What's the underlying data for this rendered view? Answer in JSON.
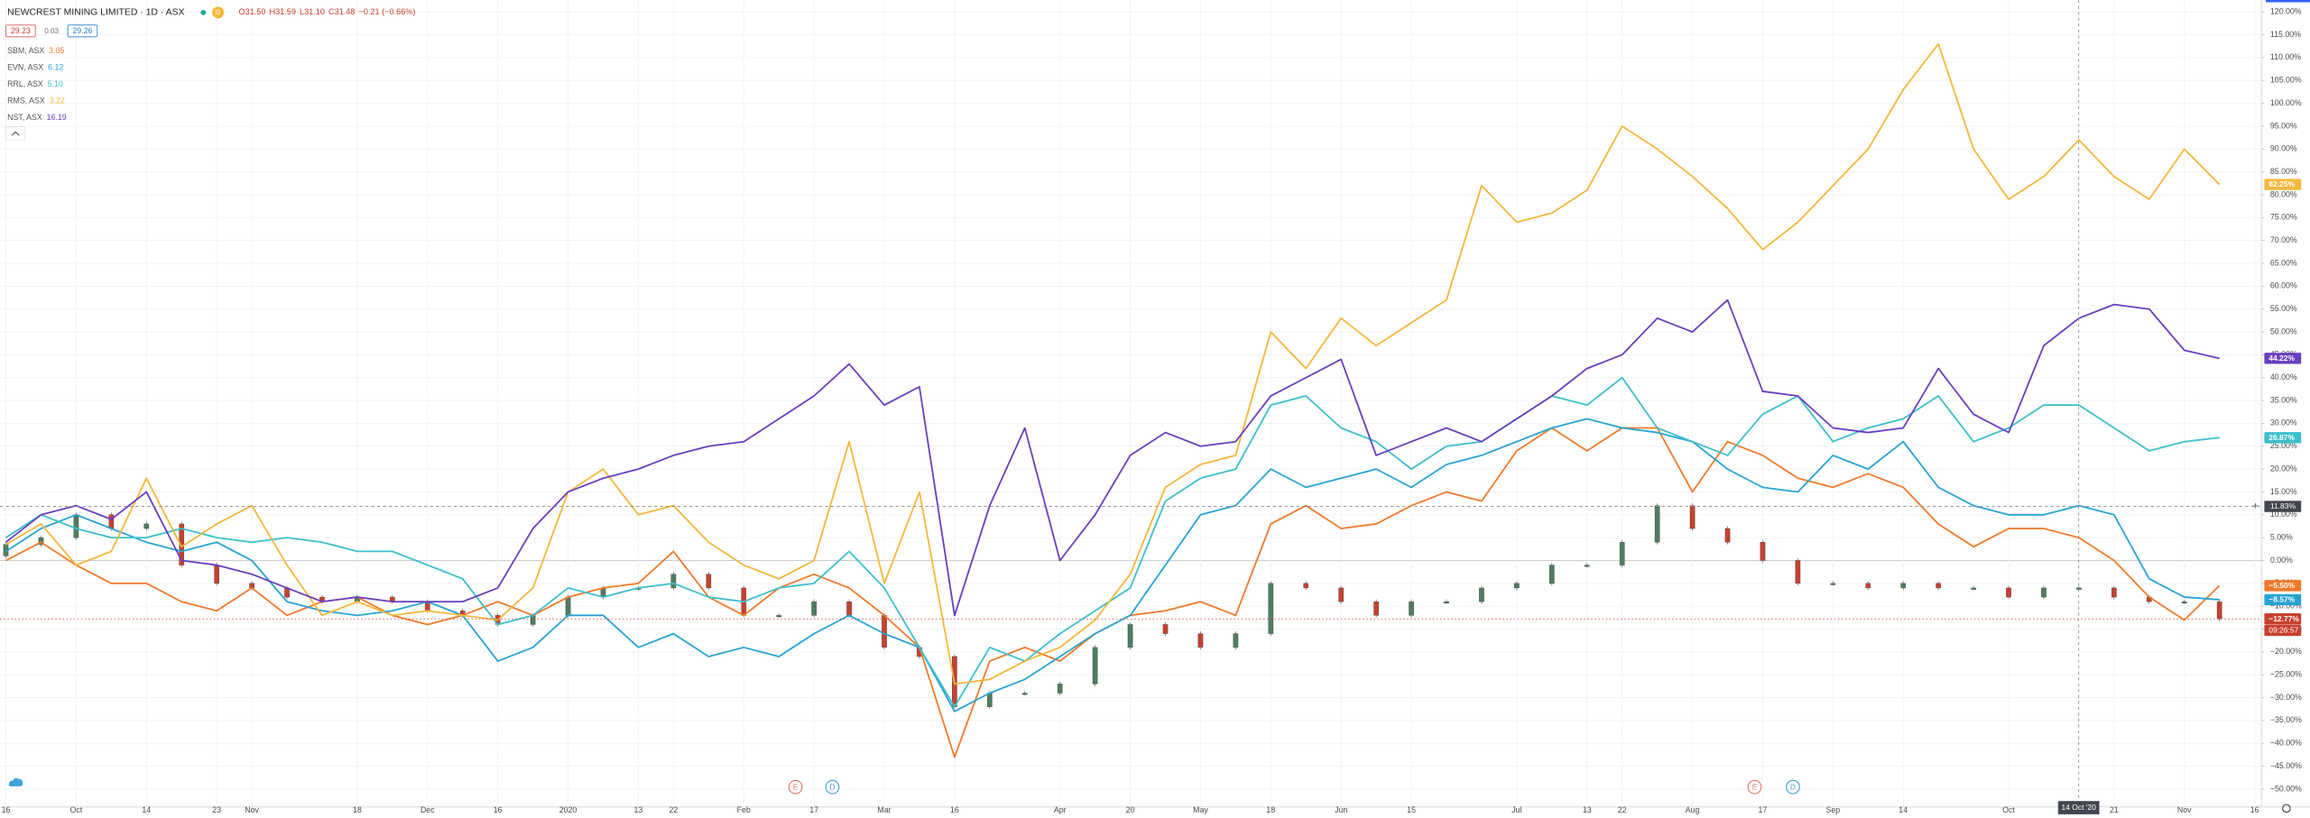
{
  "header": {
    "symbol": "NEWCREST MINING LIMITED · 1D · ASX",
    "interval_badge": "D",
    "ohlc": [
      "O31.50",
      "H31.59",
      "L31.10",
      "C31.48",
      "−0.21 (−0.66%)"
    ],
    "sell": "29.23",
    "spread": "0.03",
    "buy": "29.26"
  },
  "chart_data": {
    "type": "line",
    "categories": [
      "16",
      null,
      "Oct",
      null,
      "14",
      null,
      "23",
      "Nov",
      null,
      null,
      "18",
      null,
      "Dec",
      null,
      "16",
      null,
      "2020",
      null,
      "13",
      "22",
      null,
      "Feb",
      null,
      "17",
      null,
      "Mar",
      null,
      "16",
      null,
      null,
      "Apr",
      null,
      "20",
      null,
      "May",
      null,
      "18",
      null,
      "Jun",
      null,
      "15",
      null,
      null,
      "Jul",
      null,
      "13",
      "22",
      null,
      "Aug",
      null,
      "17",
      null,
      "Sep",
      null,
      "14",
      null,
      null,
      "Oct",
      null,
      null,
      "21",
      null,
      "Nov",
      null,
      "16"
    ],
    "series": [
      {
        "name": "SBM, ASX",
        "price": "3.05",
        "color": "#f07a2a",
        "last_label": "−5.50%",
        "values": [
          0,
          4,
          -1,
          -5,
          -5,
          -9,
          -11,
          -6,
          -12,
          -9,
          -8,
          -12,
          -14,
          -12,
          -9,
          -12,
          -8,
          -6,
          -5,
          2,
          -8,
          -12,
          -6,
          -3,
          -6,
          -12,
          -19,
          -43,
          -22,
          -19,
          -22,
          -16,
          -12,
          -11,
          -9,
          -12,
          8,
          12,
          7,
          8,
          12,
          15,
          13,
          24,
          29,
          24,
          29,
          29,
          15,
          26,
          23,
          18,
          16,
          19,
          16,
          8,
          3,
          7,
          7,
          5,
          0,
          -8,
          -13,
          -5.5,
          null
        ]
      },
      {
        "name": "EVN, ASX",
        "price": "6.12",
        "color": "#27a4d3",
        "last_label": "−8.57%",
        "values": [
          2,
          7,
          10,
          7,
          4,
          2,
          4,
          0,
          -9,
          -11,
          -12,
          -11,
          -9,
          -12,
          -22,
          -19,
          -12,
          -12,
          -19,
          -16,
          -21,
          -19,
          -21,
          -16,
          -12,
          -16,
          -19,
          -33,
          -29,
          -26,
          -21,
          -16,
          -12,
          -1,
          10,
          12,
          20,
          16,
          18,
          20,
          16,
          21,
          23,
          26,
          29,
          31,
          29,
          28,
          26,
          20,
          16,
          15,
          23,
          20,
          26,
          16,
          12,
          10,
          10,
          12,
          10,
          -4,
          -8,
          -8.57,
          null
        ]
      },
      {
        "name": "RRL, ASX",
        "price": "5.10",
        "color": "#3cbfcb",
        "last_label": "26.87%",
        "values": [
          5,
          10,
          7,
          5,
          5,
          7,
          5,
          4,
          5,
          4,
          2,
          2,
          -1,
          -4,
          -14,
          -12,
          -6,
          -8,
          -6,
          -5,
          -8,
          -9,
          -6,
          -5,
          2,
          -6,
          -19,
          -32,
          -19,
          -22,
          -16,
          -11,
          -6,
          13,
          18,
          20,
          34,
          36,
          29,
          26,
          20,
          25,
          26,
          31,
          36,
          34,
          40,
          29,
          26,
          23,
          32,
          36,
          26,
          29,
          31,
          36,
          26,
          29,
          34,
          34,
          29,
          24,
          26,
          26.87,
          null
        ]
      },
      {
        "name": "RMS, ASX",
        "price": "3.22",
        "color": "#f3b73b",
        "last_label": "82.25%",
        "values": [
          3.5,
          8,
          -1,
          2,
          18,
          3,
          8,
          12,
          -1,
          -12,
          -9,
          -12,
          -11,
          -12,
          -13,
          -6,
          15,
          20,
          10,
          12,
          4,
          -1,
          -4,
          0,
          26,
          -5,
          15,
          -27,
          -26,
          -22,
          -19,
          -13,
          -3,
          16,
          21,
          23,
          50,
          42,
          53,
          47,
          52,
          57,
          82,
          74,
          76,
          81,
          95,
          90,
          84,
          77,
          68,
          74,
          82,
          90,
          103,
          113,
          90,
          79,
          84,
          92,
          84,
          79,
          90,
          82.25,
          null
        ]
      },
      {
        "name": "NST, ASX",
        "price": "16.19",
        "color": "#6a3fbf",
        "last_label": "44.22%",
        "values": [
          4,
          10,
          12,
          9,
          15,
          0,
          -1,
          -3,
          -6,
          -9,
          -8,
          -9,
          -9,
          -9,
          -6,
          7,
          15,
          18,
          20,
          23,
          25,
          26,
          31,
          36,
          43,
          34,
          38,
          -12,
          12,
          29,
          0,
          10,
          23,
          28,
          25,
          26,
          36,
          40,
          44,
          23,
          26,
          29,
          26,
          31,
          36,
          42,
          45,
          53,
          50,
          57,
          37,
          36,
          29,
          28,
          29,
          42,
          32,
          28,
          47,
          53,
          56,
          55,
          46,
          44.22,
          null
        ]
      }
    ],
    "candles": {
      "up_color": "#4e7d60",
      "down_color": "#c8402f",
      "last_label": "−12.77%",
      "countdown": "09:26:57",
      "open": [
        1,
        3.5,
        5,
        10,
        7,
        8,
        -1,
        -5,
        -6,
        -8,
        -9,
        -8,
        -9,
        -11,
        -12,
        -14,
        -12,
        -8,
        -6,
        -6,
        -3,
        -6,
        -12,
        -12,
        -9,
        -12,
        -19,
        -21,
        -32,
        -29,
        -29,
        -27,
        -19,
        -14,
        -16,
        -19,
        -16,
        -5,
        -6,
        -9,
        -12,
        -9,
        -9,
        -6,
        -5,
        -1,
        -1,
        4,
        12,
        7,
        4,
        0,
        -5,
        -5,
        -6,
        -5,
        -6,
        -6,
        -8,
        -6,
        -6,
        -8,
        -9,
        -9,
        null
      ],
      "close": [
        3.5,
        5,
        10,
        7,
        8,
        -1,
        -5,
        -6,
        -8,
        -9,
        -8,
        -9,
        -11,
        -12,
        -14,
        -12,
        -8,
        -6,
        -6,
        -3,
        -6,
        -12,
        -12,
        -9,
        -12,
        -19,
        -21,
        -32,
        -29,
        -29,
        -27,
        -19,
        -14,
        -16,
        -19,
        -16,
        -5,
        -6,
        -9,
        -12,
        -9,
        -9,
        -6,
        -5,
        -1,
        -1,
        4,
        12,
        7,
        4,
        0,
        -5,
        -5,
        -6,
        -5,
        -6,
        -6,
        -8,
        -6,
        -6,
        -8,
        -9,
        -9,
        -12.77,
        null
      ]
    },
    "ylim": [
      -53.9,
      122.6
    ],
    "yticks": [
      {
        "value": -50,
        "label": "−50.00%"
      },
      {
        "value": -45,
        "label": "−45.00%"
      },
      {
        "value": -40,
        "label": "−40.00%"
      },
      {
        "value": -35,
        "label": "−35.00%"
      },
      {
        "value": -30,
        "label": "−30.00%"
      },
      {
        "value": -25,
        "label": "−25.00%"
      },
      {
        "value": -20,
        "label": "−20.00%"
      },
      {
        "value": -15,
        "label": "−15.00%"
      },
      {
        "value": -10,
        "label": "−10.00%"
      },
      {
        "value": -5,
        "label": "−5.00%"
      },
      {
        "value": 0,
        "label": "0.00%"
      },
      {
        "value": 5,
        "label": "5.00%"
      },
      {
        "value": 10,
        "label": "10.00%"
      },
      {
        "value": 15,
        "label": "15.00%"
      },
      {
        "value": 20,
        "label": "20.00%"
      },
      {
        "value": 25,
        "label": "25.00%"
      },
      {
        "value": 30,
        "label": "30.00%"
      },
      {
        "value": 35,
        "label": "35.00%"
      },
      {
        "value": 40,
        "label": "40.00%"
      },
      {
        "value": 45,
        "label": "45.00%"
      },
      {
        "value": 50,
        "label": "50.00%"
      },
      {
        "value": 55,
        "label": "55.00%"
      },
      {
        "value": 60,
        "label": "60.00%"
      },
      {
        "value": 65,
        "label": "65.00%"
      },
      {
        "value": 70,
        "label": "70.00%"
      },
      {
        "value": 75,
        "label": "75.00%"
      },
      {
        "value": 80,
        "label": "80.00%"
      },
      {
        "value": 85,
        "label": "85.00%"
      },
      {
        "value": 90,
        "label": "90.00%"
      },
      {
        "value": 95,
        "label": "95.00%"
      },
      {
        "value": 100,
        "label": "100.00%"
      },
      {
        "value": 105,
        "label": "105.00%"
      },
      {
        "value": 110,
        "label": "110.00%"
      },
      {
        "value": 115,
        "label": "115.00%"
      },
      {
        "value": 120,
        "label": "120.00%"
      }
    ],
    "grid": true,
    "crosshair": {
      "x_label": "14 Oct '20",
      "y": 11.83,
      "y_label": "11.83%"
    },
    "events": [
      "E",
      "D",
      "E",
      "D"
    ]
  }
}
